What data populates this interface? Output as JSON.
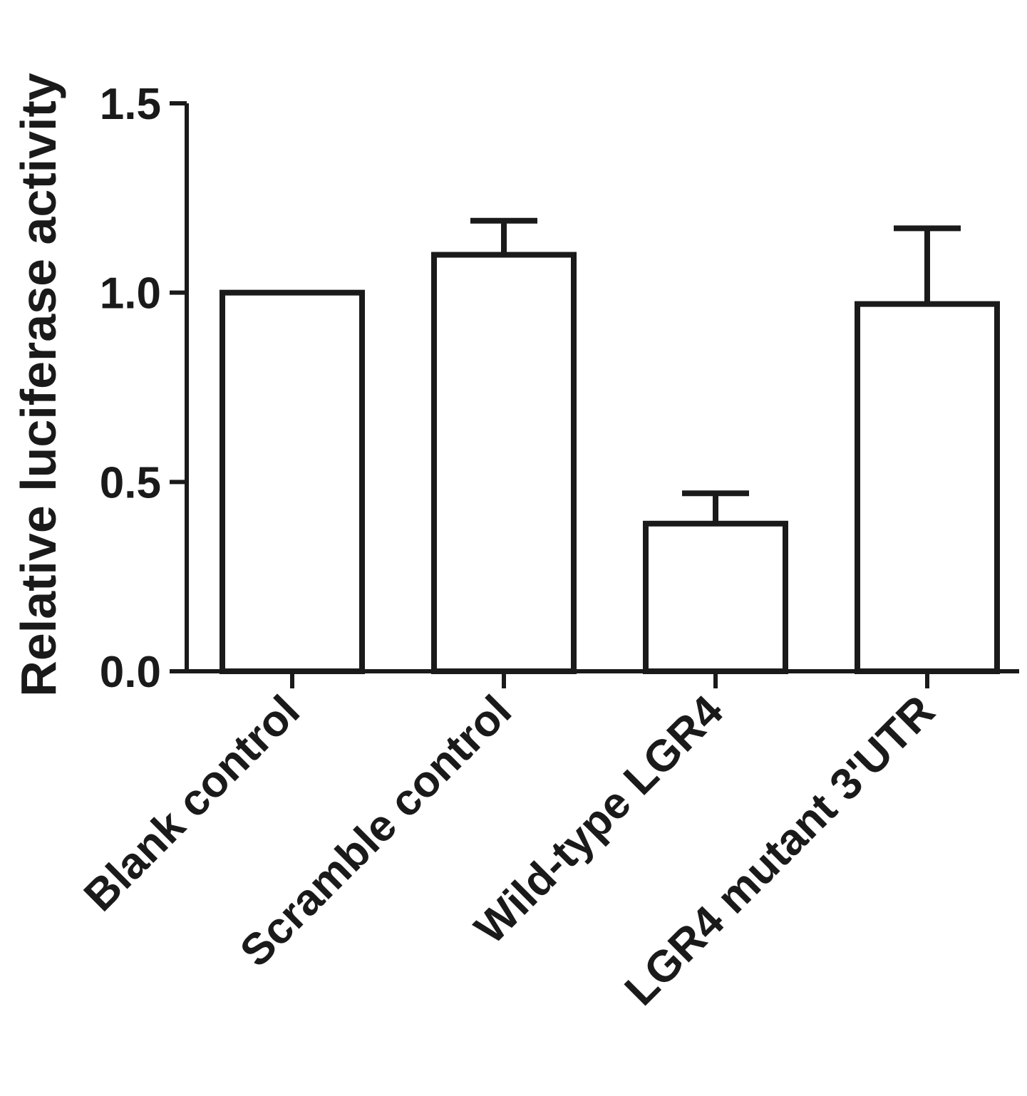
{
  "chart_data": {
    "type": "bar",
    "ylabel": "Relative luciferase activity",
    "xlabel": "",
    "ylim": [
      0,
      1.5
    ],
    "yticks": [
      "0.0",
      "0.5",
      "1.0",
      "1.5"
    ],
    "yticks_values": [
      0,
      0.5,
      1.0,
      1.5
    ],
    "categories": [
      "Blank control",
      "Scramble control",
      "Wild-type LGR4",
      "LGR4 mutant 3'UTR"
    ],
    "values": [
      1.0,
      1.1,
      0.39,
      0.97
    ],
    "error_upper": [
      0,
      0.09,
      0.08,
      0.2
    ],
    "grid": false,
    "bar_fill": "#ffffff",
    "bar_stroke": "#1a1a1a"
  }
}
